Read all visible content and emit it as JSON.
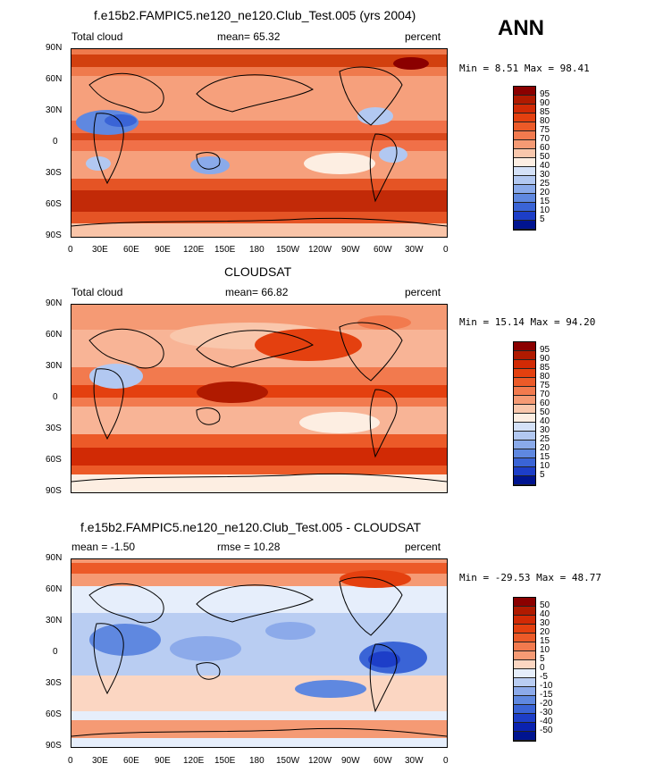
{
  "page": {
    "season": "ANN",
    "panels": [
      {
        "title": "f.e15b2.FAMPIC5.ne120_ne120.Club_Test.005 (yrs 2004)",
        "left_label": "Total cloud",
        "center_label": "mean=  65.32",
        "right_label": "percent",
        "stats": "Min =   8.51  Max =  98.41"
      },
      {
        "title": "CLOUDSAT",
        "left_label": "Total cloud",
        "center_label": "mean=  66.82",
        "right_label": "percent",
        "stats": "Min =  15.14  Max =  94.20"
      },
      {
        "title": "f.e15b2.FAMPIC5.ne120_ne120.Club_Test.005 - CLOUDSAT",
        "left_label": "mean =  -1.50",
        "center_label": "rmse =  10.28",
        "right_label": "percent",
        "stats": "Min = -29.53  Max =  48.77"
      }
    ],
    "lat_labels": [
      "90N",
      "60N",
      "30N",
      "0",
      "30S",
      "60S",
      "90S"
    ],
    "lon_labels": [
      "0",
      "30E",
      "60E",
      "90E",
      "120E",
      "150E",
      "180",
      "150W",
      "120W",
      "90W",
      "60W",
      "30W",
      "0"
    ],
    "colorbar_abs": {
      "labels": [
        "95",
        "90",
        "85",
        "80",
        "75",
        "70",
        "60",
        "50",
        "40",
        "30",
        "25",
        "20",
        "15",
        "10",
        "5"
      ],
      "colors": [
        "#8b0000",
        "#b01a00",
        "#d12a05",
        "#e4400f",
        "#ec5a28",
        "#f27a4e",
        "#f59a74",
        "#f9c7ac",
        "#fdeee2",
        "#d4e1f7",
        "#b2c8f1",
        "#8aaaea",
        "#5f88e0",
        "#3a64d6",
        "#1d3ec8",
        "#001490"
      ]
    },
    "colorbar_diff": {
      "labels": [
        "50",
        "40",
        "30",
        "20",
        "15",
        "10",
        "5",
        "0",
        "-5",
        "-10",
        "-15",
        "-20",
        "-30",
        "-40",
        "-50"
      ],
      "colors": [
        "#8b0000",
        "#b01a00",
        "#d12a05",
        "#e4400f",
        "#ec5a28",
        "#f27a4e",
        "#f59a74",
        "#fbd6c2",
        "#e6eefb",
        "#b9cdf2",
        "#8caaea",
        "#5f88e0",
        "#3a64d6",
        "#1d3ec8",
        "#0a22b0",
        "#001490"
      ]
    }
  }
}
